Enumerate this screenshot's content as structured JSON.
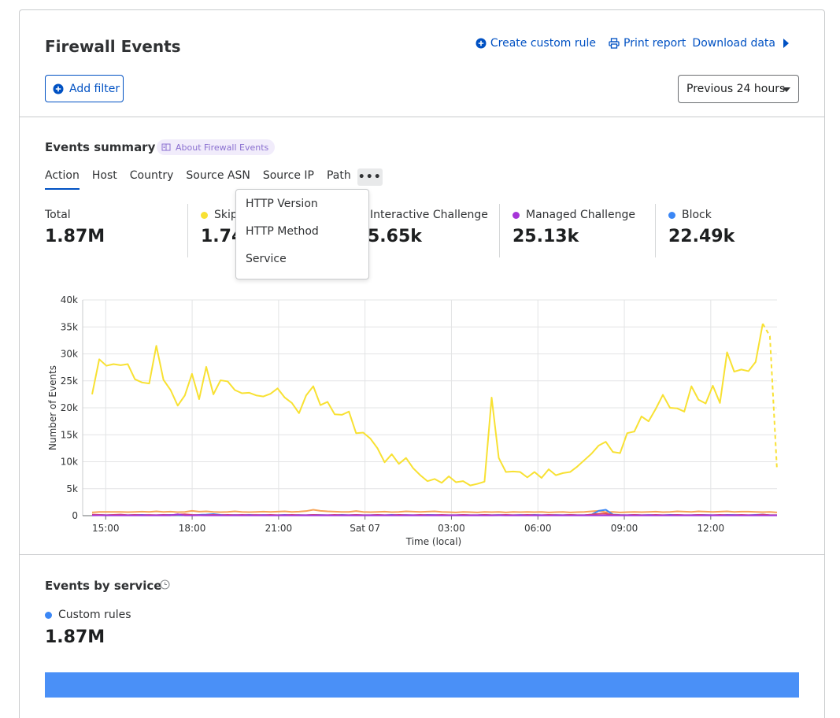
{
  "header": {
    "title": "Firewall Events",
    "create_rule": "Create custom rule",
    "print_report": "Print report",
    "download_data": "Download data",
    "add_filter": "Add filter",
    "time_range": "Previous 24 hours"
  },
  "summary": {
    "title": "Events summary",
    "about": "About Firewall Events",
    "tabs": [
      "Action",
      "Host",
      "Country",
      "Source ASN",
      "Source IP",
      "Path"
    ],
    "more_label": "•••",
    "dropdown": [
      "HTTP Version",
      "HTTP Method",
      "Service"
    ],
    "stats": [
      {
        "label": "Total",
        "value": "1.87M",
        "color": ""
      },
      {
        "label": "Skip",
        "value": "1.74",
        "color": "#f8e133"
      },
      {
        "label": "Interactive Challenge",
        "value": "5.65k",
        "color": ""
      },
      {
        "label": "Managed Challenge",
        "value": "25.13k",
        "color": "#a635d8"
      },
      {
        "label": "Block",
        "value": "22.49k",
        "color": "#3b87f5"
      }
    ]
  },
  "chart_data": {
    "type": "line",
    "xlabel": "Time (local)",
    "ylabel": "Number of Events",
    "ylim": [
      0,
      40000
    ],
    "y_ticks": [
      "0",
      "5k",
      "10k",
      "15k",
      "20k",
      "25k",
      "30k",
      "35k",
      "40k"
    ],
    "x_ticks": [
      "15:00",
      "18:00",
      "21:00",
      "Sat 07",
      "03:00",
      "06:00",
      "09:00",
      "12:00"
    ],
    "x_range_hours": [
      -0.8,
      23.3
    ],
    "grid": true,
    "series": [
      {
        "color": "#f8e133",
        "values": [
          22500,
          29000,
          27800,
          28100,
          27900,
          28100,
          25300,
          24700,
          24500,
          31500,
          25200,
          23300,
          20400,
          22300,
          26300,
          21600,
          27600,
          22500,
          25100,
          24900,
          23300,
          22700,
          22800,
          22300,
          22100,
          22600,
          23600,
          21900,
          20900,
          19000,
          22300,
          24000,
          20500,
          21100,
          18800,
          18700,
          19300,
          15300,
          15400,
          14300,
          12500,
          9900,
          11400,
          9600,
          10700,
          8800,
          7500,
          6400,
          6800,
          6100,
          7300,
          6200,
          6400,
          5600,
          5900,
          6300,
          21900,
          10700,
          8100,
          8200,
          8100,
          7100,
          8100,
          7000,
          8600,
          7500,
          7900,
          8100,
          9100,
          10300,
          11500,
          13000,
          13700,
          11800,
          11600,
          15300,
          15600,
          18400,
          17500,
          19800,
          22400,
          20000,
          19900,
          19300,
          24000,
          21500,
          20800,
          24100,
          20900,
          30300,
          26700,
          27100,
          26800,
          28500,
          35600,
          33300,
          8400
        ],
        "dashed_tail_points": 2
      },
      {
        "color": "#f6a456",
        "values": [
          600,
          700,
          700,
          700,
          700,
          650,
          700,
          750,
          700,
          800,
          700,
          750,
          650,
          700,
          900,
          750,
          800,
          700,
          650,
          700,
          800,
          700,
          650,
          700,
          750,
          700,
          750,
          800,
          700,
          750,
          850,
          1100,
          900,
          800,
          750,
          700,
          700,
          850,
          700,
          650,
          700,
          750,
          650,
          700,
          800,
          750,
          700,
          750,
          800,
          700,
          650,
          600,
          700,
          650,
          600,
          700,
          650,
          700,
          600,
          700,
          650,
          700,
          650,
          700,
          600,
          650,
          700,
          600,
          650,
          700,
          800,
          900,
          650,
          700,
          600,
          650,
          700,
          650,
          700,
          750,
          650,
          700,
          800,
          750,
          700,
          800,
          750,
          700,
          750,
          800,
          700,
          750,
          750,
          700,
          650,
          700,
          600
        ]
      },
      {
        "color": "#3b87f5",
        "values": [
          100,
          150,
          100,
          120,
          150,
          100,
          120,
          150,
          100,
          100,
          120,
          150,
          100,
          120,
          100,
          150,
          200,
          300,
          150,
          100,
          120,
          100,
          150,
          100,
          120,
          100,
          100,
          150,
          100,
          120,
          100,
          150,
          120,
          100,
          100,
          150,
          100,
          120,
          100,
          100,
          120,
          100,
          150,
          100,
          120,
          100,
          100,
          150,
          120,
          100,
          100,
          100,
          120,
          100,
          100,
          150,
          100,
          120,
          100,
          100,
          120,
          100,
          150,
          100,
          100,
          120,
          100,
          150,
          100,
          100,
          200,
          900,
          1100,
          200,
          120,
          100,
          150,
          100,
          120,
          100,
          100,
          150,
          120,
          100,
          100,
          150,
          120,
          100,
          100,
          150,
          120,
          100,
          100,
          150,
          200,
          100,
          100
        ]
      },
      {
        "color": "#e0495d",
        "values": [
          200,
          150,
          100,
          150,
          200,
          100,
          150,
          100,
          120,
          100,
          150,
          100,
          200,
          250,
          150,
          100,
          100,
          150,
          100,
          150,
          100,
          150,
          100,
          120,
          100,
          150,
          100,
          100,
          150,
          100,
          100,
          150,
          100,
          100,
          150,
          100,
          100,
          150,
          100,
          100,
          150,
          100,
          100,
          150,
          100,
          100,
          150,
          100,
          100,
          150,
          100,
          100,
          150,
          100,
          100,
          150,
          100,
          100,
          150,
          100,
          100,
          150,
          100,
          100,
          150,
          100,
          100,
          150,
          100,
          100,
          200,
          350,
          400,
          150,
          100,
          100,
          150,
          100,
          100,
          150,
          100,
          100,
          150,
          100,
          100,
          150,
          100,
          100,
          150,
          100,
          100,
          150,
          100,
          100,
          200,
          100,
          100
        ]
      },
      {
        "color": "#a635d8",
        "values": [
          50,
          80,
          60,
          50,
          70,
          60,
          50,
          80,
          60,
          50,
          70,
          60,
          250,
          60,
          50,
          70,
          60,
          50,
          80,
          60,
          50,
          70,
          60,
          50,
          80,
          60,
          50,
          70,
          60,
          50,
          80,
          60,
          50,
          70,
          60,
          50,
          80,
          60,
          50,
          70,
          60,
          50,
          80,
          60,
          50,
          70,
          60,
          50,
          80,
          60,
          50,
          70,
          60,
          50,
          80,
          60,
          50,
          70,
          60,
          50,
          80,
          60,
          50,
          70,
          60,
          50,
          80,
          60,
          50,
          70,
          60,
          50,
          80,
          60,
          50,
          70,
          60,
          50,
          80,
          60,
          50,
          70,
          60,
          50,
          80,
          60,
          50,
          70,
          60,
          50,
          80,
          60,
          50,
          70,
          60,
          50,
          60
        ]
      }
    ]
  },
  "services": {
    "title": "Events by service",
    "legend": "Custom rules",
    "value": "1.87M",
    "color": "#4a90f7"
  }
}
